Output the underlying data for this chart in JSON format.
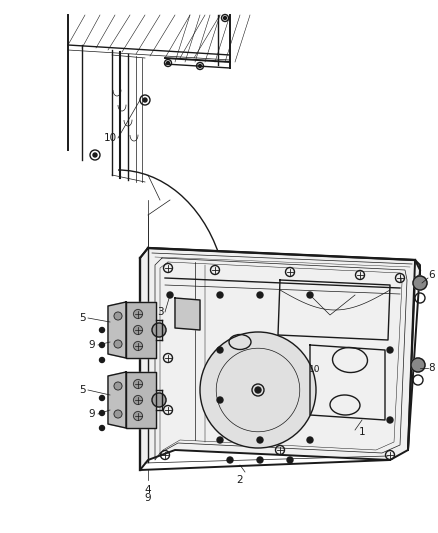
{
  "bg_color": "#ffffff",
  "line_color": "#1a1a1a",
  "fig_width": 4.38,
  "fig_height": 5.33,
  "dpi": 100,
  "door_fill": "#f0f0f0",
  "hinge_fill": "#d0d0d0",
  "dark_fill": "#888888",
  "label_fontsize": 7.5,
  "lw_main": 1.0,
  "lw_thin": 0.5,
  "lw_thick": 1.4
}
